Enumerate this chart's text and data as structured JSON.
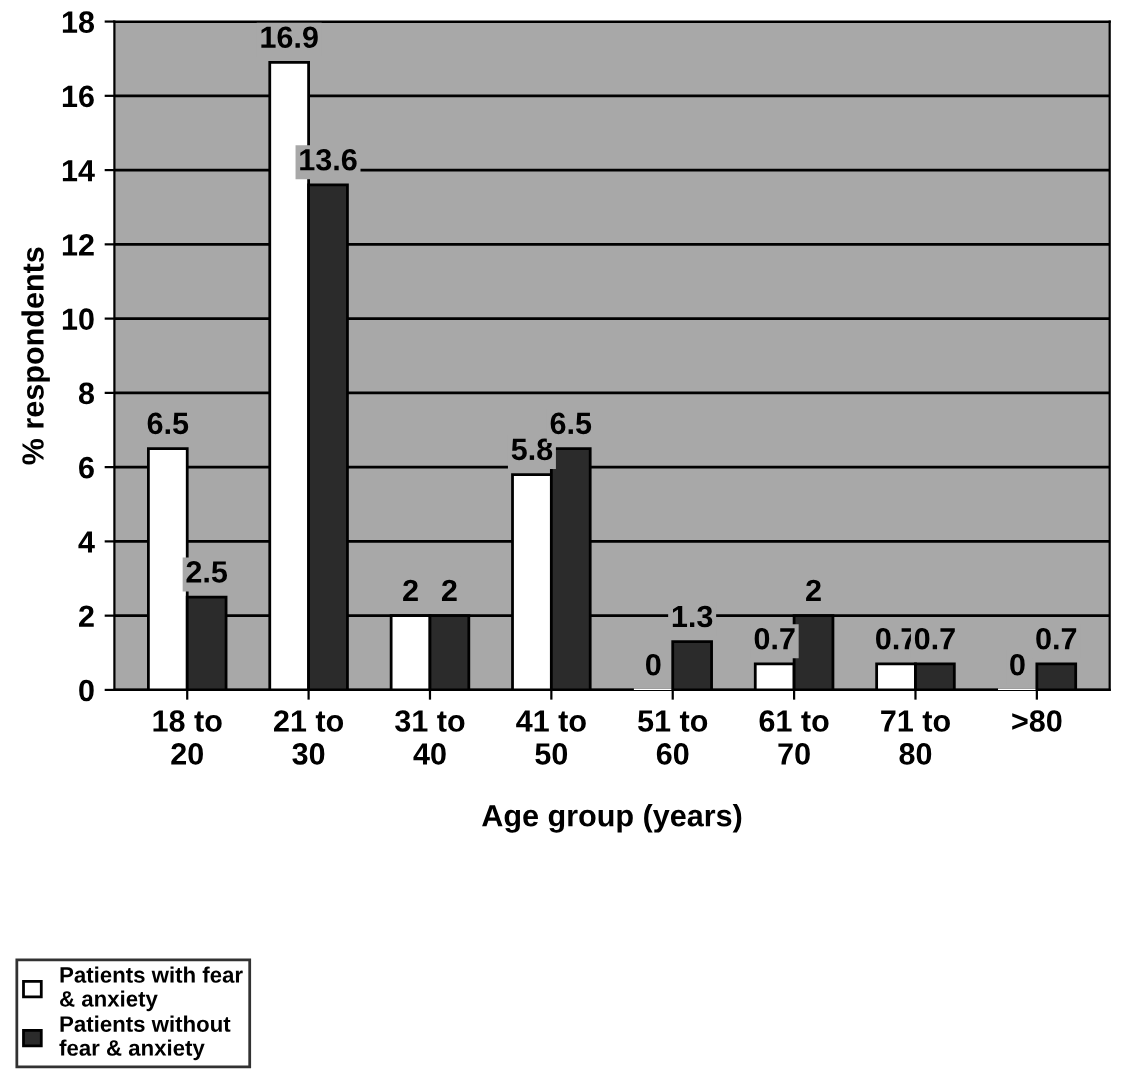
{
  "chart_data": {
    "type": "bar",
    "categories": [
      "18 to\n20",
      "21 to\n30",
      "31 to\n40",
      "41 to\n50",
      "51 to\n60",
      "61 to\n70",
      "71 to\n80",
      ">80"
    ],
    "series": [
      {
        "name": "Patients with fear\n& anxiety",
        "color": "#ffffff",
        "values": [
          6.5,
          16.9,
          2,
          5.8,
          0,
          0.7,
          0.7,
          0
        ]
      },
      {
        "name": "Patients without\nfear & anxiety",
        "color": "#2b2b2b",
        "values": [
          2.5,
          13.6,
          2,
          6.5,
          1.3,
          2,
          0.7,
          0.7
        ]
      }
    ],
    "xlabel": "Age group (years)",
    "ylabel": "% respondents",
    "ylim": [
      0,
      18
    ],
    "yticks": [
      0,
      2,
      4,
      6,
      8,
      10,
      12,
      14,
      16,
      18
    ],
    "grid": "y",
    "legend": "bottom left",
    "data_labels": true
  }
}
